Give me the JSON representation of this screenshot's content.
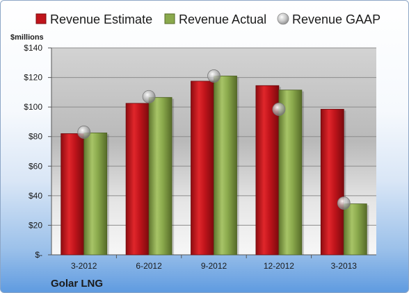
{
  "chart_data": {
    "type": "bar",
    "title": "",
    "ylabel": "$millions",
    "xlabel": "",
    "categories": [
      "3-2012",
      "6-2012",
      "9-2012",
      "12-2012",
      "3-2013"
    ],
    "series": [
      {
        "name": "Revenue Estimate",
        "values": [
          82,
          102.5,
          117.5,
          114.5,
          98.5
        ],
        "color": "#c0141b",
        "kind": "bar"
      },
      {
        "name": "Revenue Actual",
        "values": [
          82.5,
          106.5,
          121,
          111.5,
          34.5
        ],
        "color": "#8aa94c",
        "kind": "bar"
      },
      {
        "name": "Revenue GAAP",
        "values": [
          83,
          107,
          121,
          98.5,
          35
        ],
        "color": "#9a9a9a",
        "kind": "marker"
      }
    ],
    "ylim": [
      0,
      140
    ],
    "yticks": [
      0,
      20,
      40,
      60,
      80,
      100,
      120,
      140
    ],
    "ytick_labels": [
      "$-",
      "$20",
      "$40",
      "$60",
      "$80",
      "$100",
      "$120",
      "$140"
    ],
    "grid": true,
    "legend_position": "top"
  },
  "footer": {
    "company": "Golar LNG"
  }
}
